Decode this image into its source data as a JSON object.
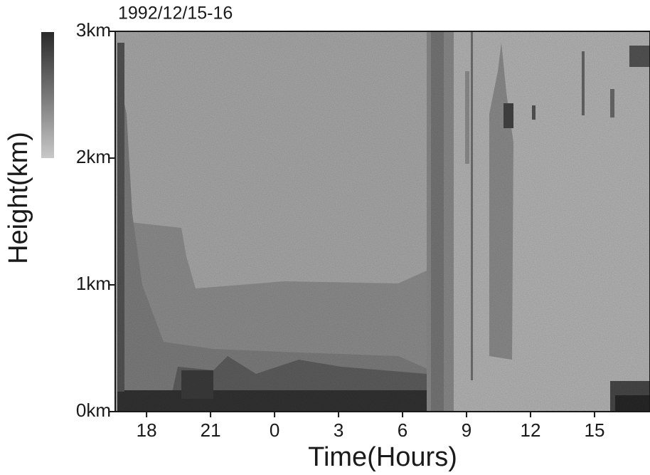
{
  "chart_data": {
    "type": "heatmap",
    "title": "1992/12/15-16",
    "x_label": "Time(Hours)",
    "y_label": "Height(km)",
    "xlim": [
      16.53,
      41.6
    ],
    "xticks": [
      18,
      21,
      {
        "value": 24,
        "label": "0"
      },
      {
        "value": 27,
        "label": "3"
      },
      {
        "value": 30,
        "label": "6"
      },
      {
        "value": 33,
        "label": "9"
      },
      {
        "value": 36,
        "label": "12"
      },
      {
        "value": 39,
        "label": "15"
      }
    ],
    "ylim": [
      0,
      3
    ],
    "yticks": [
      {
        "value": 0,
        "label": "0km"
      },
      {
        "value": 1,
        "label": "1km"
      },
      {
        "value": 2,
        "label": "2km"
      },
      {
        "value": 3,
        "label": "3km"
      }
    ]
  }
}
